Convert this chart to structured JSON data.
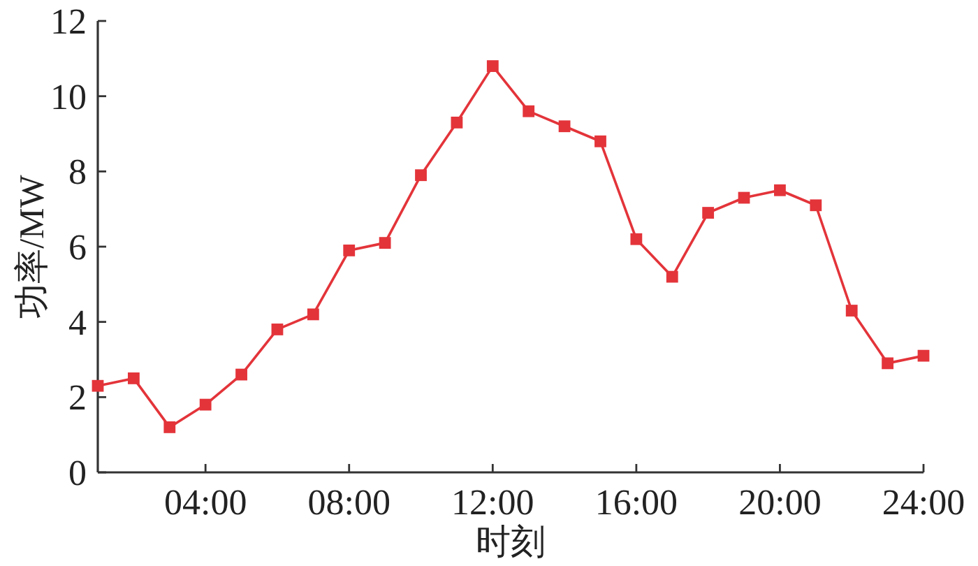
{
  "chart_data": {
    "type": "line",
    "xlabel": "时刻",
    "ylabel": "功率/MW",
    "x": [
      1,
      2,
      3,
      4,
      5,
      6,
      7,
      8,
      9,
      10,
      11,
      12,
      13,
      14,
      15,
      16,
      17,
      18,
      19,
      20,
      21,
      22,
      23,
      24
    ],
    "series": [
      {
        "color": "#e3343a",
        "values": [
          2.3,
          2.5,
          1.2,
          1.8,
          2.6,
          3.8,
          4.2,
          5.9,
          6.1,
          7.9,
          9.3,
          10.8,
          9.6,
          9.2,
          8.8,
          6.2,
          5.2,
          6.9,
          7.3,
          7.5,
          7.1,
          4.3,
          2.9,
          3.1
        ]
      }
    ],
    "xlim": [
      1,
      24
    ],
    "ylim": [
      0,
      12
    ],
    "xticks": [
      {
        "value": 4,
        "label": "04:00"
      },
      {
        "value": 8,
        "label": "08:00"
      },
      {
        "value": 12,
        "label": "12:00"
      },
      {
        "value": 16,
        "label": "16:00"
      },
      {
        "value": 20,
        "label": "20:00"
      },
      {
        "value": 24,
        "label": "24:00"
      }
    ],
    "yticks": [
      0,
      2,
      4,
      6,
      8,
      10,
      12
    ],
    "marker": "square",
    "line_style": "solid"
  }
}
